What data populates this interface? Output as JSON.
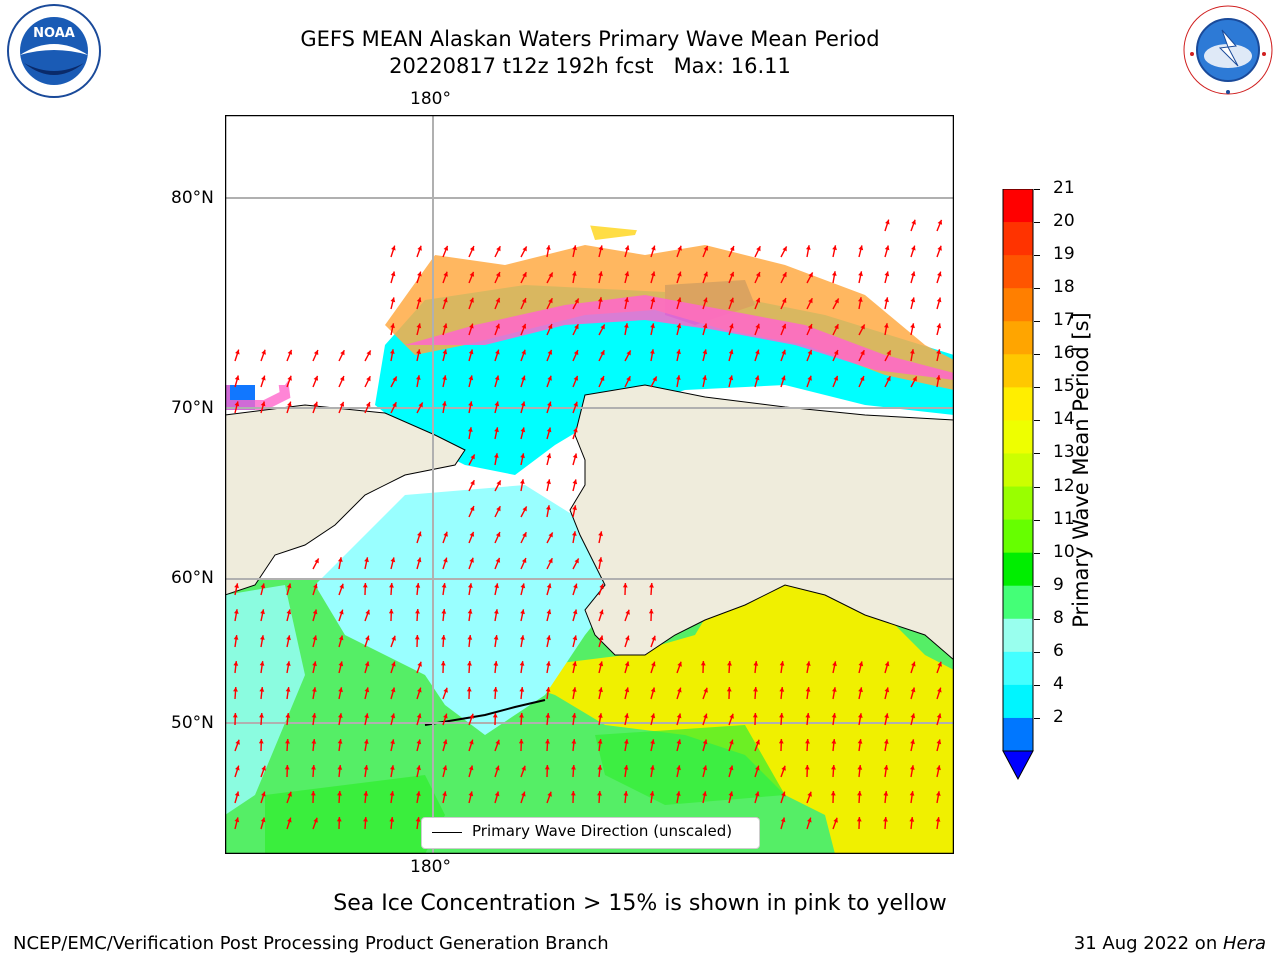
{
  "title": {
    "line1": "GEFS MEAN Alaskan Waters Primary Wave Mean Period",
    "line2": "20220817 t12z 192h fcst   Max: 16.11"
  },
  "logos": {
    "noaa": "NOAA",
    "nws": "NATIONAL WEATHER SERVICE"
  },
  "map": {
    "lon_labels": [
      "180°",
      "180°"
    ],
    "lat_labels": [
      "80°N",
      "70°N",
      "60°N",
      "50°N"
    ],
    "legend_text": "Primary Wave Direction (unscaled)",
    "ocean_colors": {
      "green": "#55ee66",
      "bright_green": "#33ee33",
      "yellow": "#f0f000",
      "light_cyan": "#99ffff",
      "cyan": "#00ffff",
      "blue": "#1177ff",
      "land": "#efecdc",
      "ice_pink": "#ff66cc",
      "ice_orange": "#ffaa44",
      "ice_yellow": "#ffdd44"
    },
    "arrow_color": "#ff0000"
  },
  "colorbar": {
    "label": "Primary Wave Mean Period [s]",
    "ticks": [
      "21",
      "20",
      "19",
      "18",
      "17",
      "16",
      "15",
      "14",
      "13",
      "12",
      "11",
      "10",
      "9",
      "8",
      "6",
      "4",
      "2"
    ],
    "colors": [
      "#ff0000",
      "#ff3300",
      "#ff5500",
      "#ff7f00",
      "#ffa500",
      "#ffc800",
      "#ffee00",
      "#eeff00",
      "#ccff00",
      "#99ff00",
      "#66ff00",
      "#00ee00",
      "#44ff77",
      "#99ffee",
      "#44ffff",
      "#00f5ff",
      "#0077ff",
      "#0000ff"
    ]
  },
  "caption": "Sea Ice Concentration > 15% is shown in pink to yellow",
  "footer": {
    "left": "NCEP/EMC/Verification Post Processing Product Generation Branch",
    "right_date": "31 Aug 2022 on ",
    "right_machine": "Hera"
  }
}
